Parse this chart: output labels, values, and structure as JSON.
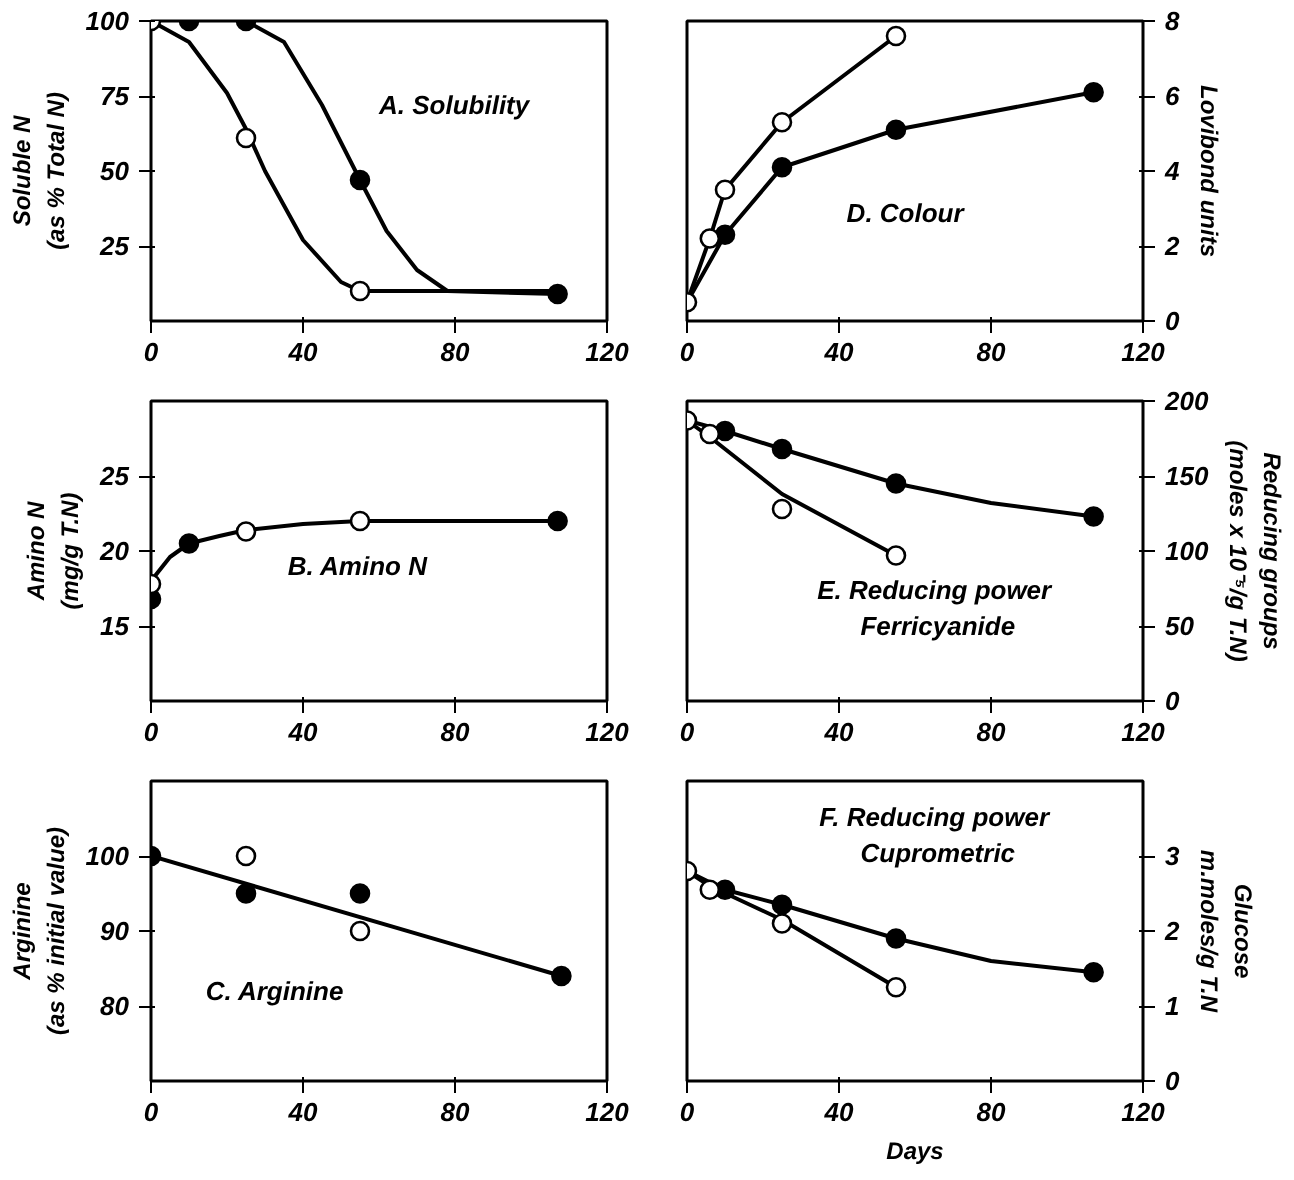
{
  "chart_data": [
    {
      "type": "line",
      "ylabel": "Soluble N\n(as % Total N)",
      "annotations": [
        "A.  Solubility"
      ],
      "xlim": [
        0,
        120
      ],
      "xticks": [
        0,
        40,
        80,
        120
      ],
      "ylim": [
        0,
        100
      ],
      "yticks": [
        25,
        50,
        75,
        100
      ],
      "marker": "circle",
      "series": [
        {
          "marker": "none",
          "color": "#000000",
          "x": [
            0,
            10,
            20,
            25,
            30,
            40,
            50,
            55,
            107
          ],
          "values": [
            100,
            93,
            76,
            64,
            50,
            27,
            13,
            10,
            10
          ]
        },
        {
          "marker": "none",
          "color": "#000000",
          "x": [
            25,
            35,
            45,
            55,
            62,
            70,
            78,
            107
          ],
          "values": [
            100,
            93,
            72,
            47,
            30,
            17,
            10,
            9
          ]
        },
        {
          "type": "scatter",
          "color": "#000000",
          "x": [
            10,
            25,
            55,
            107
          ],
          "values": [
            100,
            100,
            47,
            9
          ]
        },
        {
          "type": "scatter",
          "color": "#ffffff",
          "x": [
            0,
            25,
            55
          ],
          "values": [
            100,
            61,
            10
          ]
        }
      ]
    },
    {
      "type": "line",
      "y2label": "Lovibond units",
      "annotations": [
        "D.  Colour"
      ],
      "xlim": [
        0,
        120
      ],
      "xticks": [
        0,
        40,
        80,
        120
      ],
      "y2lim": [
        0,
        8
      ],
      "y2ticks": [
        0,
        2,
        4,
        6,
        8
      ],
      "marker": "circle",
      "series": [
        {
          "marker": "none",
          "axis": "y2",
          "color": "#000000",
          "x": [
            0,
            6,
            10,
            25,
            55
          ],
          "values": [
            0.5,
            2.2,
            3.5,
            5.3,
            7.6
          ]
        },
        {
          "marker": "none",
          "axis": "y2",
          "color": "#000000",
          "x": [
            0,
            10,
            25,
            55,
            107
          ],
          "values": [
            0.5,
            2.3,
            4.1,
            5.1,
            6.1
          ]
        },
        {
          "type": "scatter",
          "axis": "y2",
          "color": "#000000",
          "x": [
            10,
            25,
            55,
            107
          ],
          "values": [
            2.3,
            4.1,
            5.1,
            6.1
          ]
        },
        {
          "type": "scatter",
          "axis": "y2",
          "color": "#ffffff",
          "x": [
            0,
            6,
            10,
            25,
            55
          ],
          "values": [
            0.5,
            2.2,
            3.5,
            5.3,
            7.6
          ]
        }
      ]
    },
    {
      "type": "line",
      "ylabel": "Amino N\n(mg/g T.N)",
      "annotations": [
        "B.  Amino N"
      ],
      "xlim": [
        0,
        120
      ],
      "xticks": [
        0,
        40,
        80,
        120
      ],
      "ylim": [
        10,
        30
      ],
      "yticks": [
        15,
        20,
        25
      ],
      "marker": "circle",
      "series": [
        {
          "marker": "none",
          "color": "#000000",
          "x": [
            0,
            5,
            10,
            18,
            25,
            40,
            55,
            107
          ],
          "values": [
            18,
            19.6,
            20.5,
            21,
            21.4,
            21.8,
            22,
            22
          ]
        },
        {
          "type": "scatter",
          "color": "#000000",
          "x": [
            0,
            10,
            107
          ],
          "values": [
            16.8,
            20.5,
            22
          ]
        },
        {
          "type": "scatter",
          "color": "#ffffff",
          "x": [
            0,
            25,
            55
          ],
          "values": [
            17.8,
            21.3,
            22
          ]
        }
      ]
    },
    {
      "type": "line",
      "y2label": "Reducing groups\n(moles x 10⁻⁵/g T.N)",
      "annotations": [
        "E.  Reducing power\nFerricyanide"
      ],
      "xlim": [
        0,
        120
      ],
      "xticks": [
        0,
        40,
        80,
        120
      ],
      "y2lim": [
        0,
        200
      ],
      "y2ticks": [
        0,
        50,
        100,
        150,
        200
      ],
      "marker": "circle",
      "series": [
        {
          "marker": "none",
          "axis": "y2",
          "color": "#000000",
          "x": [
            0,
            6,
            25,
            55
          ],
          "values": [
            187,
            176,
            138,
            97
          ]
        },
        {
          "marker": "none",
          "axis": "y2",
          "color": "#000000",
          "x": [
            0,
            10,
            25,
            55,
            80,
            107
          ],
          "values": [
            187,
            180,
            168,
            145,
            132,
            123
          ]
        },
        {
          "type": "scatter",
          "axis": "y2",
          "color": "#000000",
          "x": [
            10,
            25,
            55,
            107
          ],
          "values": [
            180,
            168,
            145,
            123
          ]
        },
        {
          "type": "scatter",
          "axis": "y2",
          "color": "#ffffff",
          "x": [
            0,
            6,
            25,
            55
          ],
          "values": [
            187,
            178,
            128,
            97
          ]
        }
      ]
    },
    {
      "type": "line",
      "ylabel": "Arginine\n(as % initial value)",
      "annotations": [
        "C.  Arginine"
      ],
      "xlim": [
        0,
        120
      ],
      "xticks": [
        0,
        40,
        80,
        120
      ],
      "ylim": [
        70,
        110
      ],
      "yticks": [
        80,
        90,
        100
      ],
      "marker": "circle",
      "series": [
        {
          "marker": "none",
          "color": "#000000",
          "x": [
            0,
            108
          ],
          "values": [
            100,
            84
          ]
        },
        {
          "type": "scatter",
          "color": "#000000",
          "x": [
            0,
            25,
            55,
            108
          ],
          "values": [
            100,
            95,
            95,
            84
          ]
        },
        {
          "type": "scatter",
          "color": "#ffffff",
          "x": [
            25,
            55
          ],
          "values": [
            100,
            90
          ]
        }
      ]
    },
    {
      "type": "line",
      "xlabel": "Days",
      "y2label": "Glucose\nm.moles/g T.N",
      "annotations": [
        "F.  Reducing power\nCuprometric"
      ],
      "xlim": [
        0,
        120
      ],
      "xticks": [
        0,
        40,
        80,
        120
      ],
      "y2lim": [
        0,
        4
      ],
      "y2ticks": [
        0,
        1,
        2,
        3
      ],
      "marker": "circle",
      "series": [
        {
          "marker": "none",
          "axis": "y2",
          "color": "#000000",
          "x": [
            0,
            6,
            25,
            55
          ],
          "values": [
            2.8,
            2.6,
            2.15,
            1.25
          ]
        },
        {
          "marker": "none",
          "axis": "y2",
          "color": "#000000",
          "x": [
            0,
            10,
            25,
            55,
            80,
            107
          ],
          "values": [
            2.8,
            2.55,
            2.35,
            1.9,
            1.6,
            1.45
          ]
        },
        {
          "type": "scatter",
          "axis": "y2",
          "color": "#000000",
          "x": [
            10,
            25,
            55,
            107
          ],
          "values": [
            2.55,
            2.35,
            1.9,
            1.45
          ]
        },
        {
          "type": "scatter",
          "axis": "y2",
          "color": "#ffffff",
          "x": [
            0,
            6,
            25,
            55
          ],
          "values": [
            2.8,
            2.55,
            2.1,
            1.25
          ]
        }
      ]
    }
  ]
}
